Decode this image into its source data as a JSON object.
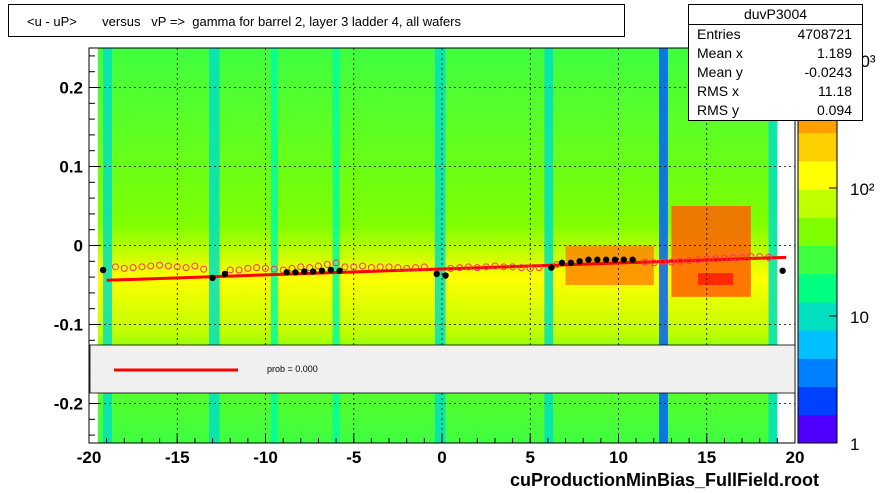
{
  "title": "<u - uP>       versus   vP =>  gamma for barrel 2, layer 3 ladder 4, all wafers",
  "stats": {
    "name": "duvP3004",
    "rows": [
      {
        "key": "Entries",
        "value": "4708721"
      },
      {
        "key": "Mean x",
        "value": "1.189"
      },
      {
        "key": "Mean y",
        "value": "-0.0243"
      },
      {
        "key": "RMS x",
        "value": "11.18"
      },
      {
        "key": "RMS y",
        "value": "0.094"
      }
    ]
  },
  "legend": {
    "label": "prob = 0.000",
    "line_color": "#ff0000"
  },
  "footer": "cuProductionMinBias_FullField.root",
  "palette": {
    "tick_labels": [
      "1",
      "10",
      "10²",
      "10³"
    ],
    "colors": [
      "#5000ff",
      "#0040ff",
      "#0080ff",
      "#00c0ff",
      "#00e0c0",
      "#00ff80",
      "#40ff40",
      "#80ff00",
      "#c0ff00",
      "#ffff00",
      "#ffd000",
      "#ffa000",
      "#ff6000",
      "#ff2000"
    ]
  },
  "chart_data": {
    "type": "heatmap",
    "title": "<u - uP>       versus   vP =>  gamma for barrel 2, layer 3 ladder 4, all wafers",
    "xlabel": "",
    "ylabel": "",
    "xlim": [
      -20,
      20
    ],
    "ylim": [
      -0.25,
      0.25
    ],
    "x_ticks": [
      "-20",
      "-15",
      "-10",
      "-5",
      "0",
      "5",
      "10",
      "15",
      "20"
    ],
    "y_ticks": [
      "-0.2",
      "-0.1",
      "0",
      "0.1",
      "0.2"
    ],
    "x_tick_values": [
      -20,
      -15,
      -10,
      -5,
      0,
      5,
      10,
      15,
      20
    ],
    "y_tick_values": [
      -0.2,
      -0.1,
      0,
      0.1,
      0.2
    ],
    "grid": true,
    "log_z": true,
    "fit_line": {
      "x": [
        -19,
        19.5
      ],
      "y": [
        -0.044,
        -0.015
      ]
    },
    "profile_black": [
      [
        -19.2,
        -0.031
      ],
      [
        -13,
        -0.041
      ],
      [
        -12.3,
        -0.036
      ],
      [
        -8.8,
        -0.034
      ],
      [
        -8.3,
        -0.034
      ],
      [
        -7.8,
        -0.033
      ],
      [
        -7.3,
        -0.033
      ],
      [
        -6.8,
        -0.032
      ],
      [
        -6.3,
        -0.031
      ],
      [
        -5.8,
        -0.032
      ],
      [
        -0.3,
        -0.036
      ],
      [
        0.2,
        -0.038
      ],
      [
        6.2,
        -0.028
      ],
      [
        6.8,
        -0.022
      ],
      [
        7.3,
        -0.022
      ],
      [
        7.8,
        -0.02
      ],
      [
        8.3,
        -0.018
      ],
      [
        8.8,
        -0.018
      ],
      [
        9.3,
        -0.018
      ],
      [
        9.8,
        -0.018
      ],
      [
        10.3,
        -0.018
      ],
      [
        10.8,
        -0.018
      ],
      [
        19.3,
        -0.032
      ]
    ],
    "profile_open": [
      [
        -18.5,
        -0.027
      ],
      [
        -18,
        -0.029
      ],
      [
        -17.5,
        -0.028
      ],
      [
        -17,
        -0.027
      ],
      [
        -16.5,
        -0.026
      ],
      [
        -16,
        -0.025
      ],
      [
        -15.5,
        -0.026
      ],
      [
        -15,
        -0.027
      ],
      [
        -14.5,
        -0.028
      ],
      [
        -14,
        -0.026
      ],
      [
        -13.5,
        -0.03
      ],
      [
        -12,
        -0.031
      ],
      [
        -11.5,
        -0.031
      ],
      [
        -11,
        -0.029
      ],
      [
        -10.5,
        -0.028
      ],
      [
        -10,
        -0.029
      ],
      [
        -9.5,
        -0.03
      ],
      [
        -9,
        -0.031
      ],
      [
        -8.5,
        -0.029
      ],
      [
        -8,
        -0.027
      ],
      [
        -7.5,
        -0.028
      ],
      [
        -7,
        -0.026
      ],
      [
        -6.5,
        -0.024
      ],
      [
        -6,
        -0.022
      ],
      [
        -5.5,
        -0.027
      ],
      [
        -5,
        -0.027
      ],
      [
        -4.5,
        -0.026
      ],
      [
        -4,
        -0.028
      ],
      [
        -3.5,
        -0.027
      ],
      [
        -3,
        -0.027
      ],
      [
        -2.5,
        -0.028
      ],
      [
        -2,
        -0.029
      ],
      [
        -1.5,
        -0.028
      ],
      [
        -1,
        -0.027
      ],
      [
        0.5,
        -0.029
      ],
      [
        1,
        -0.028
      ],
      [
        1.5,
        -0.027
      ],
      [
        2,
        -0.028
      ],
      [
        2.5,
        -0.027
      ],
      [
        3,
        -0.026
      ],
      [
        3.5,
        -0.027
      ],
      [
        4,
        -0.027
      ],
      [
        4.5,
        -0.028
      ],
      [
        5,
        -0.029
      ],
      [
        5.5,
        -0.028
      ],
      [
        6.5,
        -0.024
      ],
      [
        11.5,
        -0.021
      ],
      [
        12,
        -0.022
      ],
      [
        12.5,
        -0.021
      ],
      [
        13,
        -0.021
      ],
      [
        13.5,
        -0.02
      ],
      [
        14,
        -0.019
      ],
      [
        14.5,
        -0.018
      ],
      [
        15,
        -0.017
      ],
      [
        15.5,
        -0.017
      ],
      [
        16,
        -0.016
      ],
      [
        16.5,
        -0.015
      ],
      [
        17,
        -0.015
      ],
      [
        17.5,
        -0.014
      ],
      [
        18,
        -0.014
      ],
      [
        18.5,
        -0.015
      ]
    ]
  }
}
